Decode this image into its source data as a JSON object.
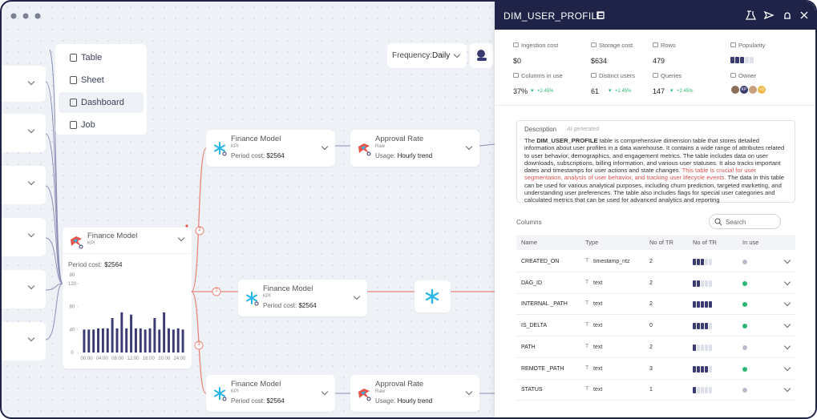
{
  "menu": {
    "items": [
      "Table",
      "Sheet",
      "Dashboard",
      "Job"
    ],
    "active": 2
  },
  "frequency": {
    "label": "Frequency:",
    "value": "Daily"
  },
  "canvas": {
    "cards": [
      {
        "title": "Finance Model",
        "subtitle": "KPI",
        "detail_label": "Period cost:",
        "detail_value": "$2564",
        "icon": "snow"
      },
      {
        "title": "Approval Rate",
        "subtitle": "Raw",
        "detail_label": "Usage:",
        "detail_value": "Hourly trend",
        "icon": "bird"
      },
      {
        "title": "Finance Model",
        "subtitle": "KPI",
        "detail_label": "Period cost:",
        "detail_value": "$2564",
        "icon": "snow"
      },
      {
        "title": "Finance Model",
        "subtitle": "KPI",
        "detail_label": "Period cost:",
        "detail_value": "$2564",
        "icon": "snow"
      },
      {
        "title": "Approval Rate",
        "subtitle": "Raw",
        "detail_label": "Usage:",
        "detail_value": "Hourly trend",
        "icon": "bird"
      }
    ],
    "badges": [
      2,
      2,
      3
    ],
    "main_card": {
      "title": "Finance Model",
      "subtitle": "KPI",
      "detail_label": "Period cost:",
      "detail_value": "$2564",
      "chart": {
        "y_top_label": "80",
        "yticks": [
          0,
          40,
          80,
          120
        ],
        "ylim": [
          0,
          120
        ],
        "color": "#3b3a72",
        "values": [
          40,
          40,
          40,
          42,
          42,
          42,
          60,
          42,
          70,
          42,
          66,
          42,
          42,
          40,
          42,
          60,
          40,
          70,
          42,
          40,
          42,
          40
        ],
        "x_labels": [
          "00:00",
          "04:00",
          "08:00",
          "12:00",
          "16:00",
          "20:00",
          "24:00"
        ]
      }
    }
  },
  "panel": {
    "title": "DIM_USER_PROFILE",
    "stats_top": [
      {
        "label": "Ingestion cost",
        "value": "$0"
      },
      {
        "label": "Storage cost",
        "value": "$634"
      },
      {
        "label": "Rows",
        "value": 479
      },
      {
        "label": "Popularity",
        "meter": 3
      }
    ],
    "stats_bottom": [
      {
        "label": "Columns in use",
        "value": "37%",
        "change": "+2.45%"
      },
      {
        "label": "Distinct users",
        "value": 61,
        "change": "+2.45%"
      },
      {
        "label": "Queries",
        "value": 147,
        "change": "+2.45%"
      },
      {
        "label": "Owner",
        "badges": [
          "KP",
          "+3"
        ]
      }
    ],
    "description": {
      "label": "Description",
      "ai_label": "AI generated",
      "parts": [
        {
          "text": "The ",
          "style": "normal"
        },
        {
          "text": "DIM_USER_PROFILE",
          "style": "bold"
        },
        {
          "text": " table is comprehensive dimension table that stores detailed information about user profiles in a data warehouse. It contains a wide range of attributes related to user behavior, demographics, and engagement metrics. The table includes data on user downloads, subscriptions, billing information, and various user statuses. It also tracks important dates and timestamps for user actions and state changes. ",
          "style": "normal"
        },
        {
          "text": "This table is crucial for user segmentation, analysis of user behavior, and tracking user lifecycle events.",
          "style": "red"
        },
        {
          "text": " The data in this table can be used for various analytical purposes, including churn prediction, targeted marketing, and understanding user preferences. The table also includes flags for special user categories and calculated metrics that can be used for advanced analytics and reporting",
          "style": "normal"
        }
      ]
    },
    "columns_label": "Columns",
    "search_placeholder": "Search",
    "headers": [
      "Name",
      "Type",
      "No of TR",
      "No of TR",
      "In use"
    ],
    "rows": [
      {
        "name": "CREATED_ON",
        "type": "timestamp_ntz",
        "tr": 2,
        "usage": 3,
        "in_use": false
      },
      {
        "name": "DAG_ID",
        "type": "text",
        "tr": 2,
        "usage": 2,
        "in_use": true
      },
      {
        "name": "INTERNAL _PATH",
        "type": "text",
        "tr": 2,
        "usage": 5,
        "in_use": true
      },
      {
        "name": "IS_DELTA",
        "type": "text",
        "tr": 0,
        "usage": 4,
        "in_use": true
      },
      {
        "name": "PATH",
        "type": "text",
        "tr": 2,
        "usage": 1,
        "in_use": false
      },
      {
        "name": "REMOTE _PATH",
        "type": "text",
        "tr": 3,
        "usage": 4,
        "in_use": true
      },
      {
        "name": "STATUS",
        "type": "text",
        "tr": 1,
        "usage": 1,
        "in_use": false
      }
    ]
  }
}
